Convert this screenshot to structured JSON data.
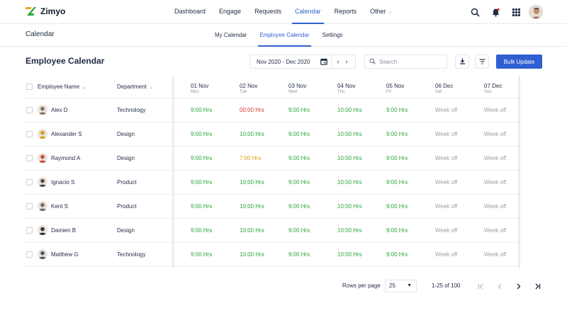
{
  "app": {
    "name": "Zimyo"
  },
  "nav": {
    "items": [
      {
        "label": "Dashboard",
        "active": false
      },
      {
        "label": "Engage",
        "active": false
      },
      {
        "label": "Requests",
        "active": false
      },
      {
        "label": "Calendar",
        "active": true
      },
      {
        "label": "Reports",
        "active": false
      },
      {
        "label": "Other",
        "active": false,
        "dropdown": true
      }
    ]
  },
  "header_icons": [
    "search-icon",
    "bell-icon",
    "apps-grid-icon",
    "user-avatar"
  ],
  "subheader": {
    "title": "Calendar",
    "tabs": [
      {
        "label": "My Calendar",
        "active": false
      },
      {
        "label": "Employee Calendar",
        "active": true
      },
      {
        "label": "Settings",
        "active": false
      }
    ]
  },
  "toolbar": {
    "title": "Employee Calendar",
    "date_range": "Nov 2020 - Dec 2020",
    "search_placeholder": "Search",
    "bulk_update_label": "Bulk Update"
  },
  "table": {
    "columns": {
      "employee": "Employee Name",
      "department": "Department"
    },
    "days": [
      {
        "date": "01 Nov",
        "day": "Mon"
      },
      {
        "date": "02 Nov",
        "day": "Tue"
      },
      {
        "date": "03 Nov",
        "day": "Wed"
      },
      {
        "date": "04 Nov",
        "day": "Thu"
      },
      {
        "date": "05 Nov",
        "day": "Fri"
      },
      {
        "date": "06 Dec",
        "day": "Sat"
      },
      {
        "date": "07 Dec",
        "day": "Sun"
      }
    ],
    "rows": [
      {
        "name": "Alex D",
        "department": "Technology",
        "avatar_color": "#8b6f5e",
        "hours": [
          "9:00 Hrs",
          "00:00 Hrs",
          "9:00 Hrs",
          "10:00 Hrs",
          "9:00 Hrs",
          "Week off",
          "Week off"
        ],
        "status": [
          "green",
          "red",
          "green",
          "green",
          "green",
          "off",
          "off"
        ]
      },
      {
        "name": "Alexander S",
        "department": "Design",
        "avatar_color": "#d4a017",
        "hours": [
          "9:00 Hrs",
          "10:00 Hrs",
          "9:00 Hrs",
          "10:00 Hrs",
          "9:00 Hrs",
          "Week off",
          "Week off"
        ],
        "status": [
          "green",
          "green",
          "green",
          "green",
          "green",
          "off",
          "off"
        ]
      },
      {
        "name": "Raymond A",
        "department": "Design",
        "avatar_color": "#c9503c",
        "hours": [
          "9:00 Hrs",
          "7:00 Hrs",
          "9:00 Hrs",
          "10:00 Hrs",
          "9:00 Hrs",
          "Week off",
          "Week off"
        ],
        "status": [
          "green",
          "orange",
          "green",
          "green",
          "green",
          "off",
          "off"
        ]
      },
      {
        "name": "Ignacio S",
        "department": "Product",
        "avatar_color": "#5b4a42",
        "hours": [
          "9:00 Hrs",
          "10:00 Hrs",
          "9:00 Hrs",
          "10:00 Hrs",
          "9:00 Hrs",
          "Week off",
          "Week off"
        ],
        "status": [
          "green",
          "green",
          "green",
          "green",
          "green",
          "off",
          "off"
        ]
      },
      {
        "name": "Kent S",
        "department": "Product",
        "avatar_color": "#7a6a63",
        "hours": [
          "9:00 Hrs",
          "10:00 Hrs",
          "9:00 Hrs",
          "10:00 Hrs",
          "9:00 Hrs",
          "Week off",
          "Week off"
        ],
        "status": [
          "green",
          "green",
          "green",
          "green",
          "green",
          "off",
          "off"
        ]
      },
      {
        "name": "Damien B",
        "department": "Design",
        "avatar_color": "#3d3431",
        "hours": [
          "9:00 Hrs",
          "10:00 Hrs",
          "9:00 Hrs",
          "10:00 Hrs",
          "9:00 Hrs",
          "Week off",
          "Week off"
        ],
        "status": [
          "green",
          "green",
          "green",
          "green",
          "green",
          "off",
          "off"
        ]
      },
      {
        "name": "Matthew G",
        "department": "Technology",
        "avatar_color": "#4a5a6e",
        "hours": [
          "9:00 Hrs",
          "10:00 Hrs",
          "9:00 Hrs",
          "10:00 Hrs",
          "9:00 Hrs",
          "Week off",
          "Week off"
        ],
        "status": [
          "green",
          "green",
          "green",
          "green",
          "green",
          "off",
          "off"
        ]
      }
    ]
  },
  "pagination": {
    "rows_per_page_label": "Rows per page",
    "rows_per_page": "25",
    "range": "1-25 of 100"
  },
  "colors": {
    "accent": "#2f5fd0",
    "green": "#2aa63b",
    "red": "#d83a2f",
    "orange": "#e0a21a",
    "muted": "#9aa1ad"
  }
}
